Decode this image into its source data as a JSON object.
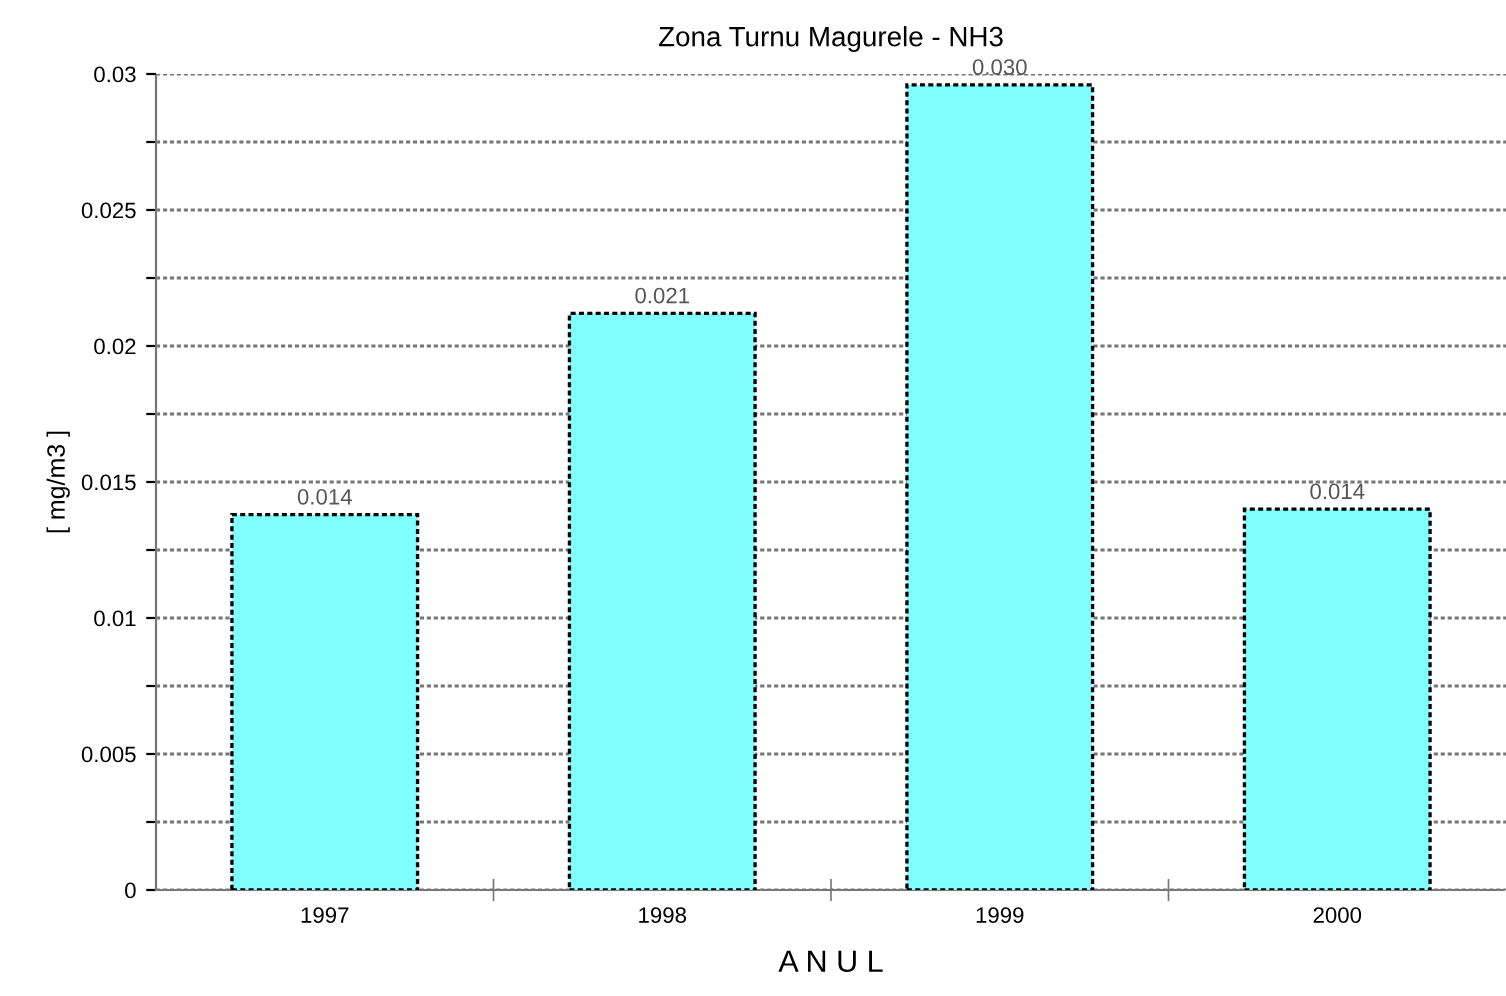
{
  "chart_data": {
    "type": "bar",
    "title": "Zona Turnu Magurele - NH3",
    "xlabel": "A N U L",
    "ylabel": "[ mg/m3 ]",
    "categories": [
      "1997",
      "1998",
      "1999",
      "2000"
    ],
    "values": [
      0.0138,
      0.0212,
      0.0296,
      0.014
    ],
    "value_labels": [
      "0.014",
      "0.021",
      "0.030",
      "0.014"
    ],
    "color": "#80ffff",
    "ylim": [
      0,
      0.03
    ],
    "yticks": [
      0,
      {
        "value": 0.0025,
        "label": null
      },
      0.005,
      {
        "value": 0.0075,
        "label": null
      },
      0.01,
      {
        "value": 0.0125,
        "label": null
      },
      0.015,
      {
        "value": 0.0175,
        "label": null
      },
      0.02,
      {
        "value": 0.0225,
        "label": null
      },
      0.025,
      {
        "value": 0.0275,
        "label": null
      },
      0.03
    ],
    "grid": "y"
  }
}
